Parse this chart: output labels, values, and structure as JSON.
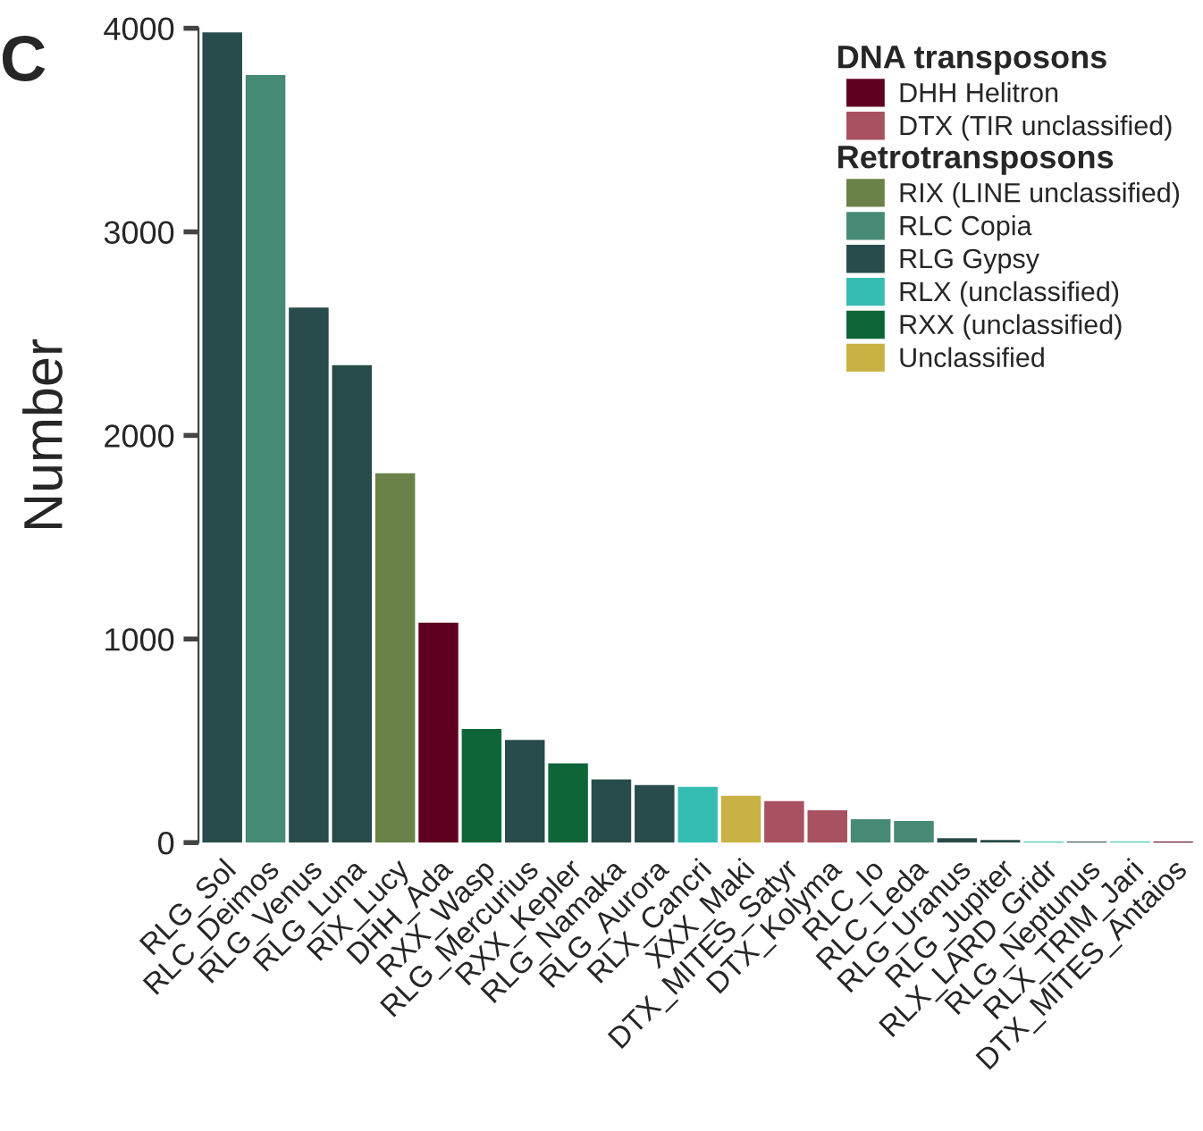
{
  "chart_data": {
    "type": "bar",
    "title": "C",
    "ylabel": "Number",
    "categories": [
      "RLG_Sol",
      "RLC_Deimos",
      "RLG_Venus",
      "RLG_Luna",
      "RIX_Lucy",
      "DHH_Ada",
      "RXX_Wasp",
      "RLG_Mercurius",
      "RXX_Kepler",
      "RLG_Namaka",
      "RLG_Aurora",
      "RLX_Cancri",
      "XXX_Maki",
      "DTX_MITES_Satyr",
      "DTX_Kolyma",
      "RLC_Io",
      "RLC_Leda",
      "RLG_Uranus",
      "RLG_Jupiter",
      "RLX_LARD_Gridr",
      "RLG_Neptunus",
      "RLX_TRIM_Jari",
      "DTX_MITES_Antaios"
    ],
    "series": [
      {
        "name": "DHH Helitron",
        "color": "#600020",
        "values": [
          null,
          null,
          null,
          null,
          null,
          1080,
          null,
          null,
          null,
          null,
          null,
          null,
          null,
          null,
          null,
          null,
          null,
          null,
          null,
          null,
          null,
          null,
          5
        ]
      },
      {
        "name": "DTX (TIR unclassified)",
        "color": "#a85160",
        "values": [
          null,
          null,
          null,
          null,
          null,
          null,
          null,
          null,
          null,
          null,
          null,
          null,
          null,
          204,
          159,
          null,
          null,
          null,
          null,
          null,
          null,
          null,
          null
        ]
      },
      {
        "name": "RIX (LINE unclassified)",
        "color": "#6a8148",
        "values": [
          null,
          null,
          null,
          null,
          1814,
          null,
          null,
          null,
          null,
          null,
          null,
          null,
          null,
          null,
          null,
          null,
          null,
          null,
          null,
          null,
          null,
          null,
          null
        ]
      },
      {
        "name": "RLC Copia",
        "color": "#468a76",
        "values": [
          null,
          3770,
          null,
          null,
          null,
          null,
          null,
          null,
          null,
          null,
          null,
          null,
          null,
          null,
          null,
          115,
          106,
          null,
          null,
          null,
          null,
          null,
          null
        ]
      },
      {
        "name": "RLG Gypsy",
        "color": "#284b4b",
        "values": [
          3980,
          null,
          2628,
          2345,
          null,
          null,
          null,
          504,
          null,
          310,
          283,
          null,
          null,
          null,
          null,
          null,
          null,
          22,
          13,
          null,
          5,
          null,
          null
        ]
      },
      {
        "name": "RLX (unclassified)",
        "color": "#35bcb3",
        "values": [
          null,
          null,
          null,
          null,
          null,
          null,
          null,
          null,
          null,
          null,
          null,
          274,
          null,
          null,
          null,
          null,
          null,
          null,
          null,
          5,
          null,
          5,
          null
        ]
      },
      {
        "name": "RXX (unclassified)",
        "color": "#0e6638",
        "values": [
          null,
          null,
          null,
          null,
          null,
          null,
          558,
          null,
          389,
          null,
          null,
          null,
          null,
          null,
          null,
          null,
          null,
          null,
          null,
          null,
          null,
          null,
          null
        ]
      },
      {
        "name": "Unclassified",
        "color": "#c8b243",
        "values": [
          null,
          null,
          null,
          null,
          null,
          null,
          null,
          null,
          null,
          null,
          null,
          null,
          230,
          null,
          null,
          null,
          null,
          null,
          null,
          null,
          null,
          null,
          null
        ]
      }
    ],
    "annotations": [
      "DNA transposons",
      "Retrotransposons"
    ],
    "ylim": [
      0,
      4000
    ],
    "yticks": [
      0,
      1000,
      2000,
      3000,
      4000
    ],
    "grid": false,
    "legend": "top right"
  }
}
